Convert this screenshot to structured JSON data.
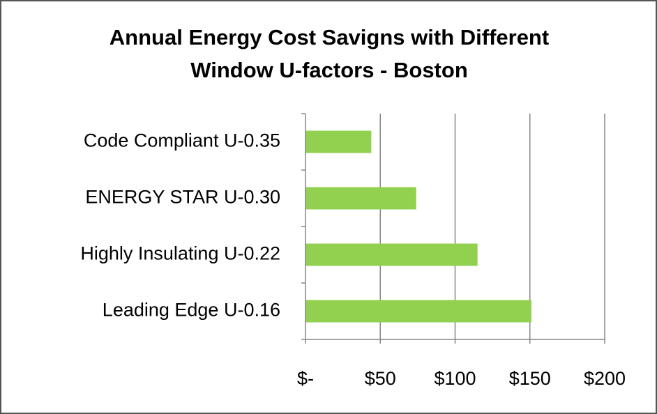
{
  "chart_data": {
    "type": "bar",
    "orientation": "horizontal",
    "title": [
      "Annual Energy Cost Savigns with Different",
      "Window U-factors - Boston"
    ],
    "categories": [
      "Code Compliant U-0.35",
      "ENERGY STAR U-0.30",
      "Highly Insulating U-0.22",
      "Leading Edge U-0.16"
    ],
    "values": [
      44,
      74,
      115,
      151
    ],
    "color": "#92d050",
    "xlim": [
      0,
      200
    ],
    "xticks": [
      {
        "value": 0,
        "label": "$-"
      },
      {
        "value": 50,
        "label": "$50"
      },
      {
        "value": 100,
        "label": "$100"
      },
      {
        "value": 150,
        "label": "$150"
      },
      {
        "value": 200,
        "label": "$200"
      }
    ],
    "grid": true
  }
}
